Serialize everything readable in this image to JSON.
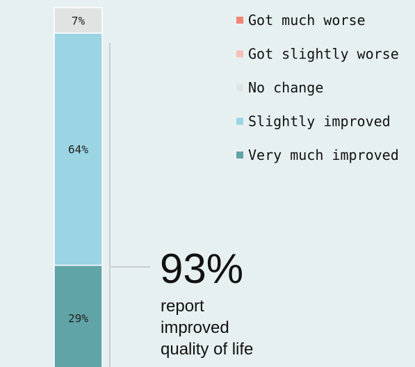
{
  "chart_data": {
    "type": "bar",
    "stacked": true,
    "categories": [
      null
    ],
    "series": [
      {
        "name": "Got much worse",
        "color": "#f28474",
        "values": [
          0
        ]
      },
      {
        "name": "Got slightly worse",
        "color": "#f7bfb7",
        "values": [
          0
        ]
      },
      {
        "name": "No change",
        "color": "#e1e3e3",
        "values": [
          7
        ],
        "value_labels": [
          "7%"
        ]
      },
      {
        "name": "Slightly improved",
        "color": "#9bd4e3",
        "values": [
          64
        ],
        "value_labels": [
          "64%"
        ]
      },
      {
        "name": "Very much improved",
        "color": "#61a4a7",
        "values": [
          29
        ],
        "value_labels": [
          "29%"
        ]
      }
    ],
    "ylim": [
      0,
      100
    ],
    "annotation": {
      "headline": "93%",
      "lines": [
        "report",
        "improved",
        "quality of life"
      ]
    }
  }
}
